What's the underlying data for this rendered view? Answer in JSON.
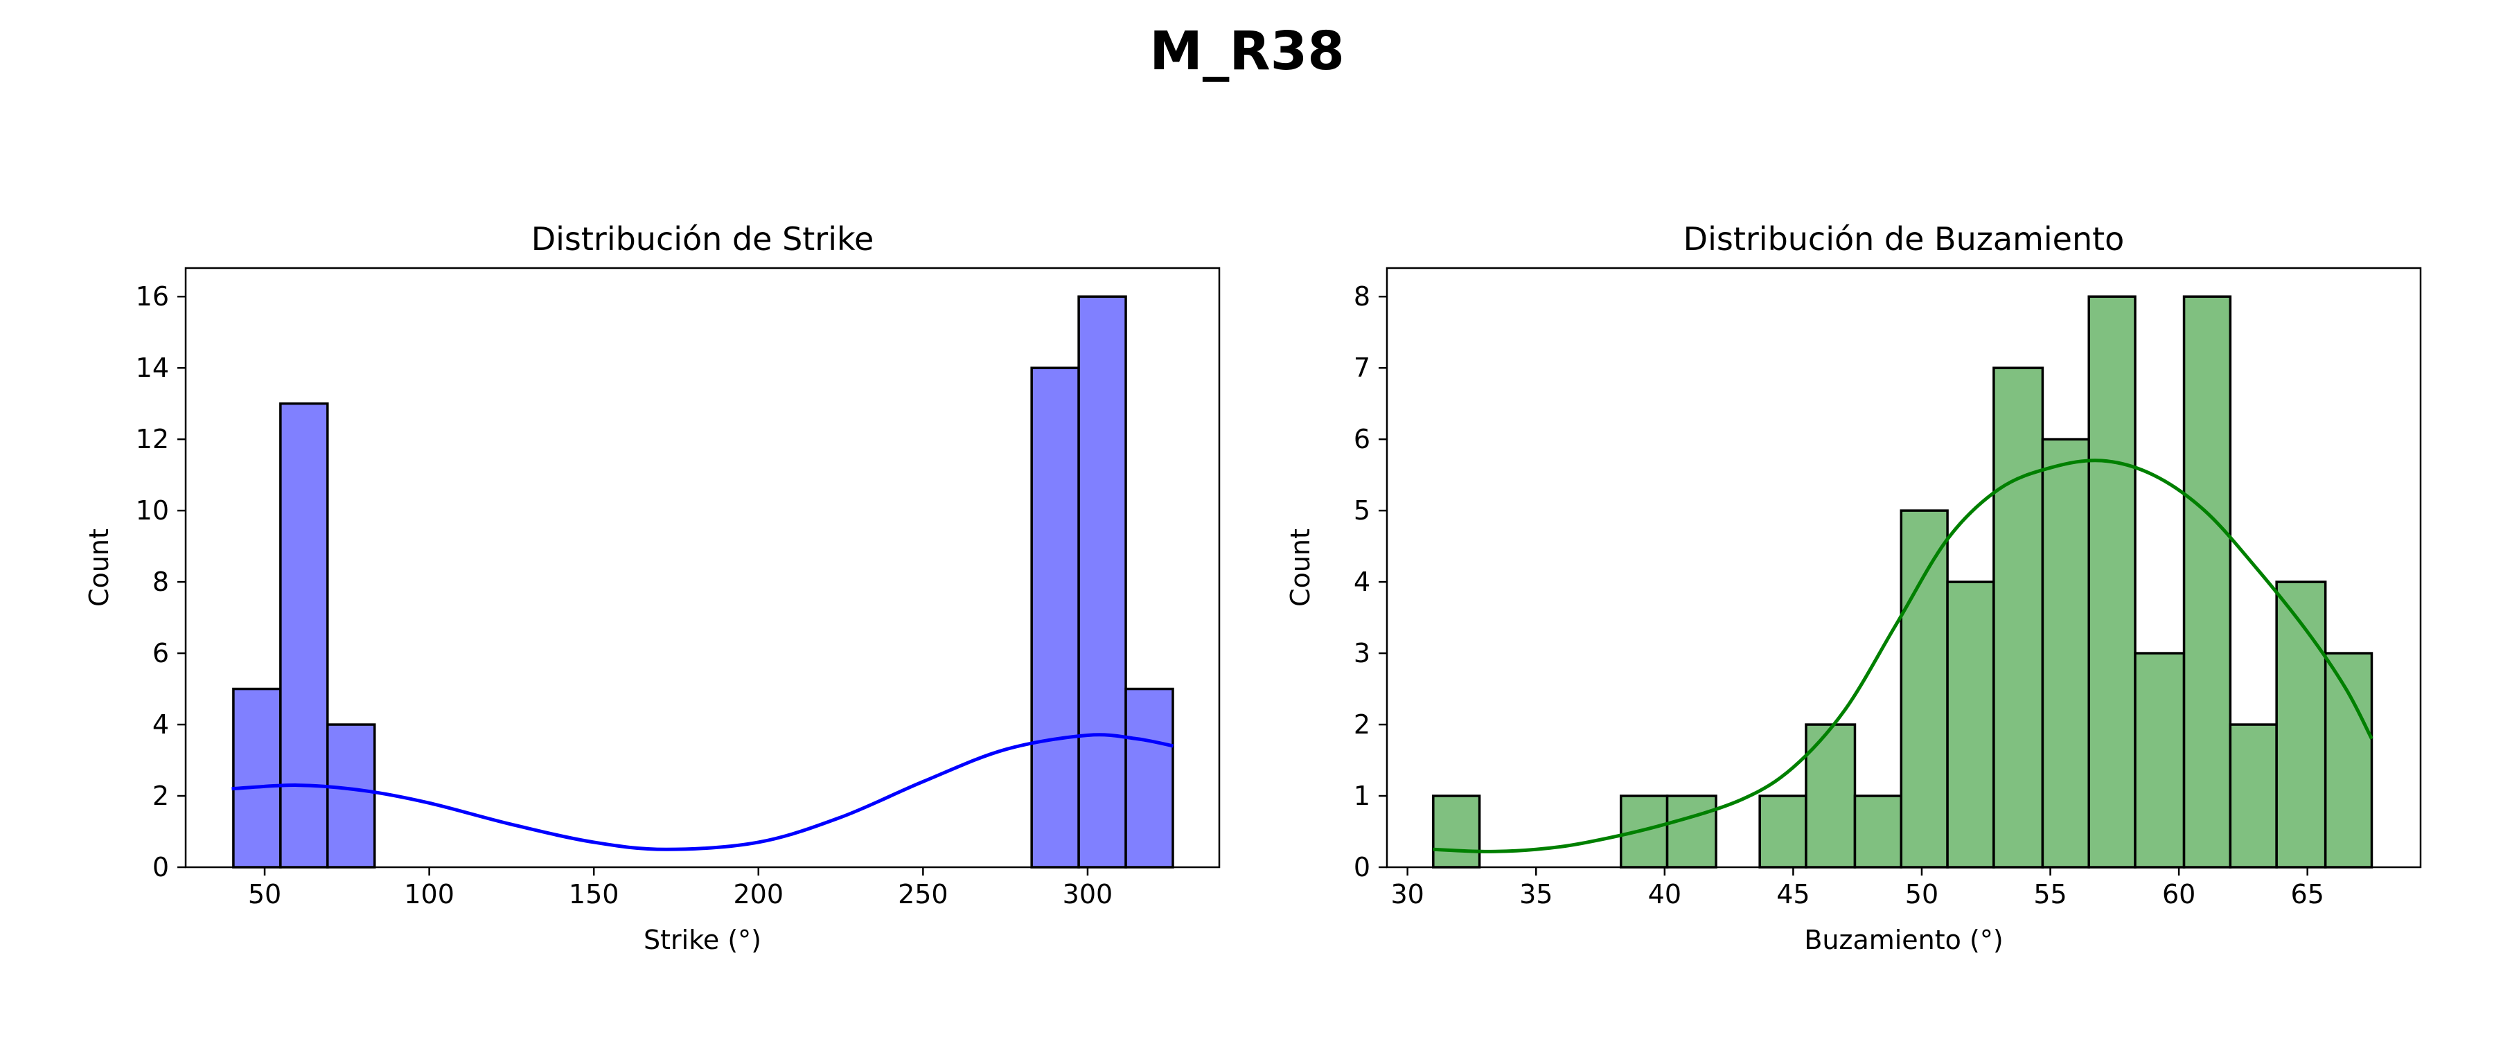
{
  "figure": {
    "suptitle": "M_R38"
  },
  "chart_data": [
    {
      "type": "bar",
      "subtype": "histogram_with_kde",
      "title": "Distribución de Strike",
      "xlabel": "Strike (°)",
      "ylabel": "Count",
      "xlim": [
        26,
        340
      ],
      "ylim": [
        0,
        16.8
      ],
      "xticks": [
        50,
        100,
        150,
        200,
        250,
        300
      ],
      "yticks": [
        0,
        2,
        4,
        6,
        8,
        10,
        12,
        14,
        16
      ],
      "grid": false,
      "bar_color": "#8080ff",
      "edge_color": "#000000",
      "bins": [
        {
          "x0": 40.5,
          "x1": 54.8,
          "count": 5
        },
        {
          "x0": 54.8,
          "x1": 69.1,
          "count": 13
        },
        {
          "x0": 69.1,
          "x1": 83.4,
          "count": 4
        },
        {
          "x0": 283.0,
          "x1": 297.3,
          "count": 14
        },
        {
          "x0": 297.3,
          "x1": 311.6,
          "count": 16
        },
        {
          "x0": 311.6,
          "x1": 325.9,
          "count": 5
        }
      ],
      "kde": {
        "color": "#0000ff",
        "points": [
          [
            40,
            2.2
          ],
          [
            60,
            2.3
          ],
          [
            80,
            2.15
          ],
          [
            100,
            1.8
          ],
          [
            125,
            1.2
          ],
          [
            150,
            0.7
          ],
          [
            172,
            0.5
          ],
          [
            200,
            0.7
          ],
          [
            225,
            1.4
          ],
          [
            250,
            2.4
          ],
          [
            275,
            3.3
          ],
          [
            300,
            3.7
          ],
          [
            315,
            3.6
          ],
          [
            326,
            3.4
          ]
        ]
      }
    },
    {
      "type": "bar",
      "subtype": "histogram_with_kde",
      "title": "Distribución de Buzamiento",
      "xlabel": "Buzamiento (°)",
      "ylabel": "Count",
      "xlim": [
        29.2,
        69.4
      ],
      "ylim": [
        0,
        8.4
      ],
      "xticks": [
        30,
        35,
        40,
        45,
        50,
        55,
        60,
        65
      ],
      "yticks": [
        0,
        1,
        2,
        3,
        4,
        5,
        6,
        7,
        8
      ],
      "grid": false,
      "bar_color": "#80c080",
      "edge_color": "#000000",
      "bins": [
        {
          "x0": 31.0,
          "x1": 32.8,
          "count": 1
        },
        {
          "x0": 38.3,
          "x1": 40.1,
          "count": 1
        },
        {
          "x0": 40.1,
          "x1": 42.0,
          "count": 1
        },
        {
          "x0": 43.7,
          "x1": 45.5,
          "count": 1
        },
        {
          "x0": 45.5,
          "x1": 47.4,
          "count": 2
        },
        {
          "x0": 47.4,
          "x1": 49.2,
          "count": 1
        },
        {
          "x0": 49.2,
          "x1": 51.0,
          "count": 5
        },
        {
          "x0": 51.0,
          "x1": 52.8,
          "count": 4
        },
        {
          "x0": 52.8,
          "x1": 54.7,
          "count": 7
        },
        {
          "x0": 54.7,
          "x1": 56.5,
          "count": 6
        },
        {
          "x0": 56.5,
          "x1": 58.3,
          "count": 8
        },
        {
          "x0": 58.3,
          "x1": 60.2,
          "count": 3
        },
        {
          "x0": 60.2,
          "x1": 62.0,
          "count": 8
        },
        {
          "x0": 62.0,
          "x1": 63.8,
          "count": 2
        },
        {
          "x0": 63.8,
          "x1": 65.7,
          "count": 4
        },
        {
          "x0": 65.7,
          "x1": 67.5,
          "count": 3
        }
      ],
      "kde": {
        "color": "#008000",
        "points": [
          [
            31,
            0.25
          ],
          [
            33,
            0.22
          ],
          [
            35,
            0.25
          ],
          [
            37,
            0.35
          ],
          [
            40,
            0.6
          ],
          [
            43,
            0.95
          ],
          [
            45,
            1.4
          ],
          [
            47,
            2.2
          ],
          [
            49,
            3.4
          ],
          [
            51,
            4.6
          ],
          [
            53,
            5.3
          ],
          [
            55,
            5.6
          ],
          [
            57,
            5.7
          ],
          [
            59,
            5.5
          ],
          [
            61,
            5.0
          ],
          [
            63,
            4.2
          ],
          [
            65,
            3.3
          ],
          [
            66.5,
            2.5
          ],
          [
            67.5,
            1.8
          ]
        ]
      }
    }
  ]
}
